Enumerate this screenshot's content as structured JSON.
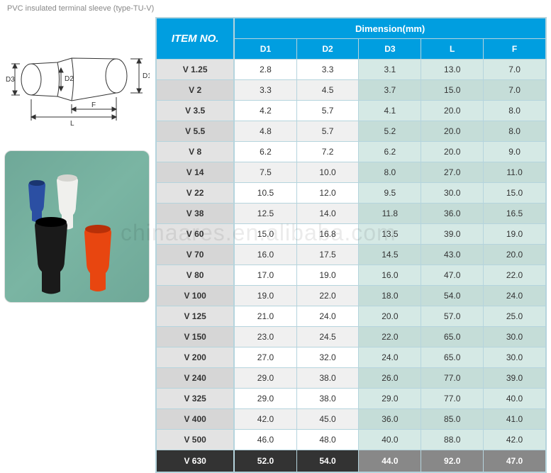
{
  "title": "PVC insulated terminal sleeve (type-TU-V)",
  "watermark": "chinaares.en.alibaba.com",
  "diagram": {
    "labels": {
      "d1": "D1",
      "d2": "D2",
      "d3": "D3",
      "l": "L",
      "f": "F"
    },
    "stroke": "#333333",
    "stroke_width": 1
  },
  "photo": {
    "background": "#6fa898",
    "sleeves": [
      {
        "name": "blue",
        "fill": "#2b4fa3"
      },
      {
        "name": "white",
        "fill": "#f0f0ed"
      },
      {
        "name": "black",
        "fill": "#1a1a1a"
      },
      {
        "name": "red",
        "fill": "#e84610"
      }
    ]
  },
  "table": {
    "header_bg": "#009ee0",
    "header_fg": "#ffffff",
    "item_alt_bg": "#e3e3e3",
    "default_bg": "#ffffff",
    "tinted_bg": "#d5e9e5",
    "border_color": "#b5d4dd",
    "last_dark_bg": "#333333",
    "last_grey_bg": "#888888",
    "item_label": "ITEM NO.",
    "dim_label": "Dimension(mm)",
    "columns": [
      "D1",
      "D2",
      "D3",
      "L",
      "F"
    ],
    "rows": [
      {
        "item": "V 1.25",
        "d1": "2.8",
        "d2": "3.3",
        "d3": "3.1",
        "l": "13.0",
        "f": "7.0"
      },
      {
        "item": "V 2",
        "d1": "3.3",
        "d2": "4.5",
        "d3": "3.7",
        "l": "15.0",
        "f": "7.0"
      },
      {
        "item": "V 3.5",
        "d1": "4.2",
        "d2": "5.7",
        "d3": "4.1",
        "l": "20.0",
        "f": "8.0"
      },
      {
        "item": "V 5.5",
        "d1": "4.8",
        "d2": "5.7",
        "d3": "5.2",
        "l": "20.0",
        "f": "8.0"
      },
      {
        "item": "V 8",
        "d1": "6.2",
        "d2": "7.2",
        "d3": "6.2",
        "l": "20.0",
        "f": "9.0"
      },
      {
        "item": "V 14",
        "d1": "7.5",
        "d2": "10.0",
        "d3": "8.0",
        "l": "27.0",
        "f": "11.0"
      },
      {
        "item": "V 22",
        "d1": "10.5",
        "d2": "12.0",
        "d3": "9.5",
        "l": "30.0",
        "f": "15.0"
      },
      {
        "item": "V 38",
        "d1": "12.5",
        "d2": "14.0",
        "d3": "11.8",
        "l": "36.0",
        "f": "16.5"
      },
      {
        "item": "V 60",
        "d1": "15.0",
        "d2": "16.8",
        "d3": "13.5",
        "l": "39.0",
        "f": "19.0"
      },
      {
        "item": "V 70",
        "d1": "16.0",
        "d2": "17.5",
        "d3": "14.5",
        "l": "43.0",
        "f": "20.0"
      },
      {
        "item": "V 80",
        "d1": "17.0",
        "d2": "19.0",
        "d3": "16.0",
        "l": "47.0",
        "f": "22.0"
      },
      {
        "item": "V 100",
        "d1": "19.0",
        "d2": "22.0",
        "d3": "18.0",
        "l": "54.0",
        "f": "24.0"
      },
      {
        "item": "V 125",
        "d1": "21.0",
        "d2": "24.0",
        "d3": "20.0",
        "l": "57.0",
        "f": "25.0"
      },
      {
        "item": "V 150",
        "d1": "23.0",
        "d2": "24.5",
        "d3": "22.0",
        "l": "65.0",
        "f": "30.0"
      },
      {
        "item": "V 200",
        "d1": "27.0",
        "d2": "32.0",
        "d3": "24.0",
        "l": "65.0",
        "f": "30.0"
      },
      {
        "item": "V 240",
        "d1": "29.0",
        "d2": "38.0",
        "d3": "26.0",
        "l": "77.0",
        "f": "39.0"
      },
      {
        "item": "V 325",
        "d1": "29.0",
        "d2": "38.0",
        "d3": "29.0",
        "l": "77.0",
        "f": "40.0"
      },
      {
        "item": "V 400",
        "d1": "42.0",
        "d2": "45.0",
        "d3": "36.0",
        "l": "85.0",
        "f": "41.0"
      },
      {
        "item": "V 500",
        "d1": "46.0",
        "d2": "48.0",
        "d3": "40.0",
        "l": "88.0",
        "f": "42.0"
      },
      {
        "item": "V 630",
        "d1": "52.0",
        "d2": "54.0",
        "d3": "44.0",
        "l": "92.0",
        "f": "47.0"
      }
    ]
  }
}
